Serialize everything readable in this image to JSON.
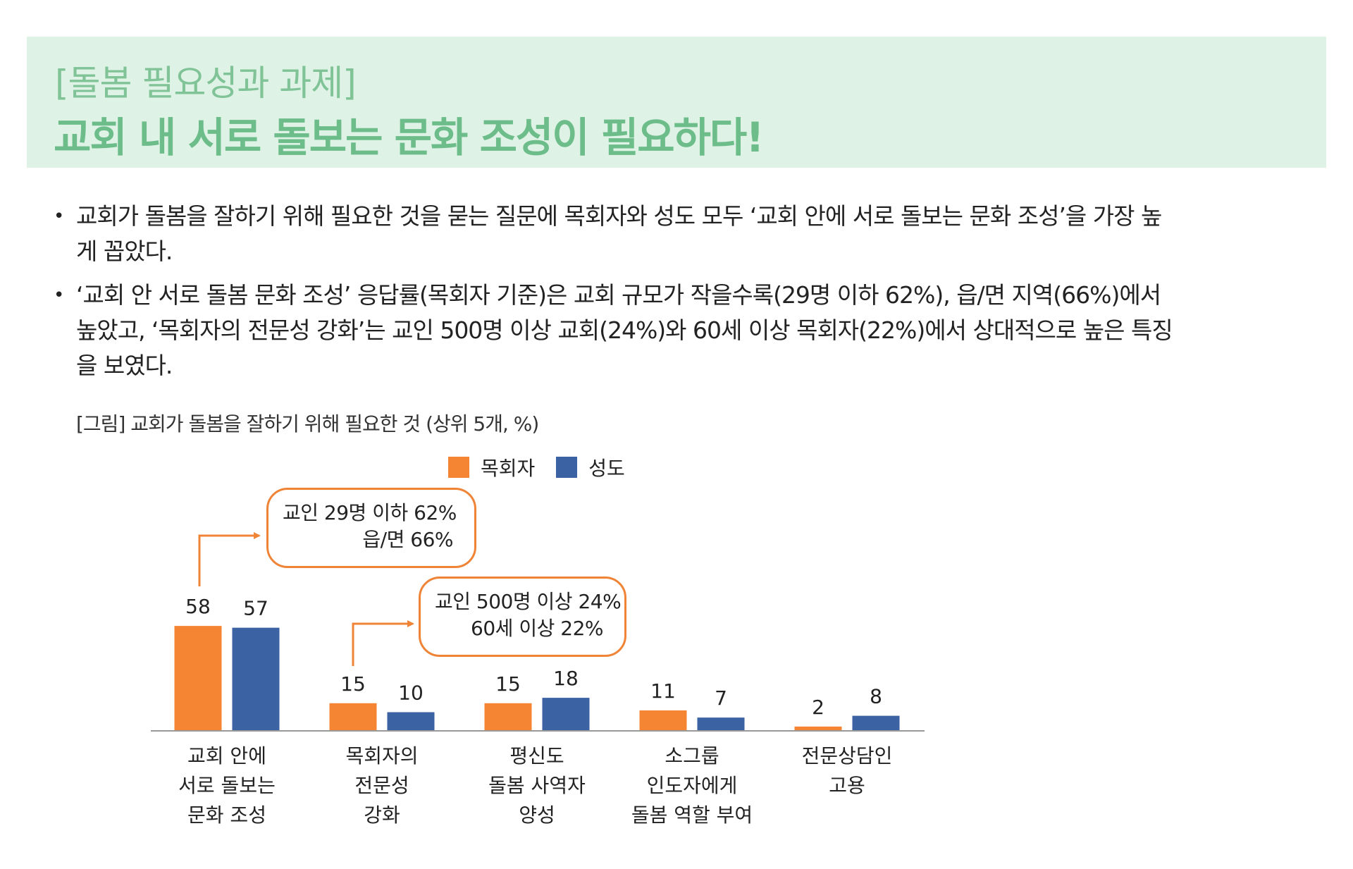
{
  "banner": {
    "subtitle": "[돌봄 필요성과 과제]",
    "title": "교회 내 서로 돌보는 문화 조성이 필요하다!"
  },
  "bullets": [
    "교회가 돌봄을 잘하기 위해 필요한 것을 묻는 질문에 목회자와 성도 모두 ‘교회 안에 서로 돌보는 문화 조성’을 가장 높게 꼽았다.",
    "‘교회 안 서로 돌봄 문화 조성’ 응답률(목회자 기준)은 교회 규모가 작을수록(29명 이하 62%), 읍/면 지역(66%)에서 높았고, ‘목회자의 전문성 강화’는 교인 500명 이상 교회(24%)와 60세 이상 목회자(22%)에서 상대적으로 높은 특징을 보였다."
  ],
  "figure_caption": "[그림] 교회가 돌봄을 잘하기 위해 필요한 것 (상위 5개, %)",
  "callouts": [
    {
      "line1": "교인 29명 이하 62%",
      "line2": "읍/면 66%"
    },
    {
      "line1": "교인 500명 이상 24%",
      "line2": "60세 이상 22%"
    }
  ],
  "colors": {
    "pastor": "#f58533",
    "member": "#3b62a3",
    "banner_bg": "#dff2e6",
    "banner_text": "#6dbd8a",
    "callout_border": "#f08436"
  },
  "chart_data": {
    "type": "bar",
    "categories": [
      [
        "교회 안에",
        "서로 돌보는",
        "문화 조성"
      ],
      [
        "목회자의",
        "전문성",
        "강화"
      ],
      [
        "평신도",
        "돌봄 사역자",
        "양성"
      ],
      [
        "소그룹",
        "인도자에게",
        "돌봄 역할 부여"
      ],
      [
        "전문상담인",
        "고용"
      ]
    ],
    "series": [
      {
        "name": "목회자",
        "values": [
          58,
          15,
          15,
          11,
          2
        ]
      },
      {
        "name": "성도",
        "values": [
          57,
          10,
          18,
          7,
          8
        ]
      }
    ],
    "ylim": [
      0,
      60
    ],
    "legend": "top-center",
    "grid": false
  }
}
